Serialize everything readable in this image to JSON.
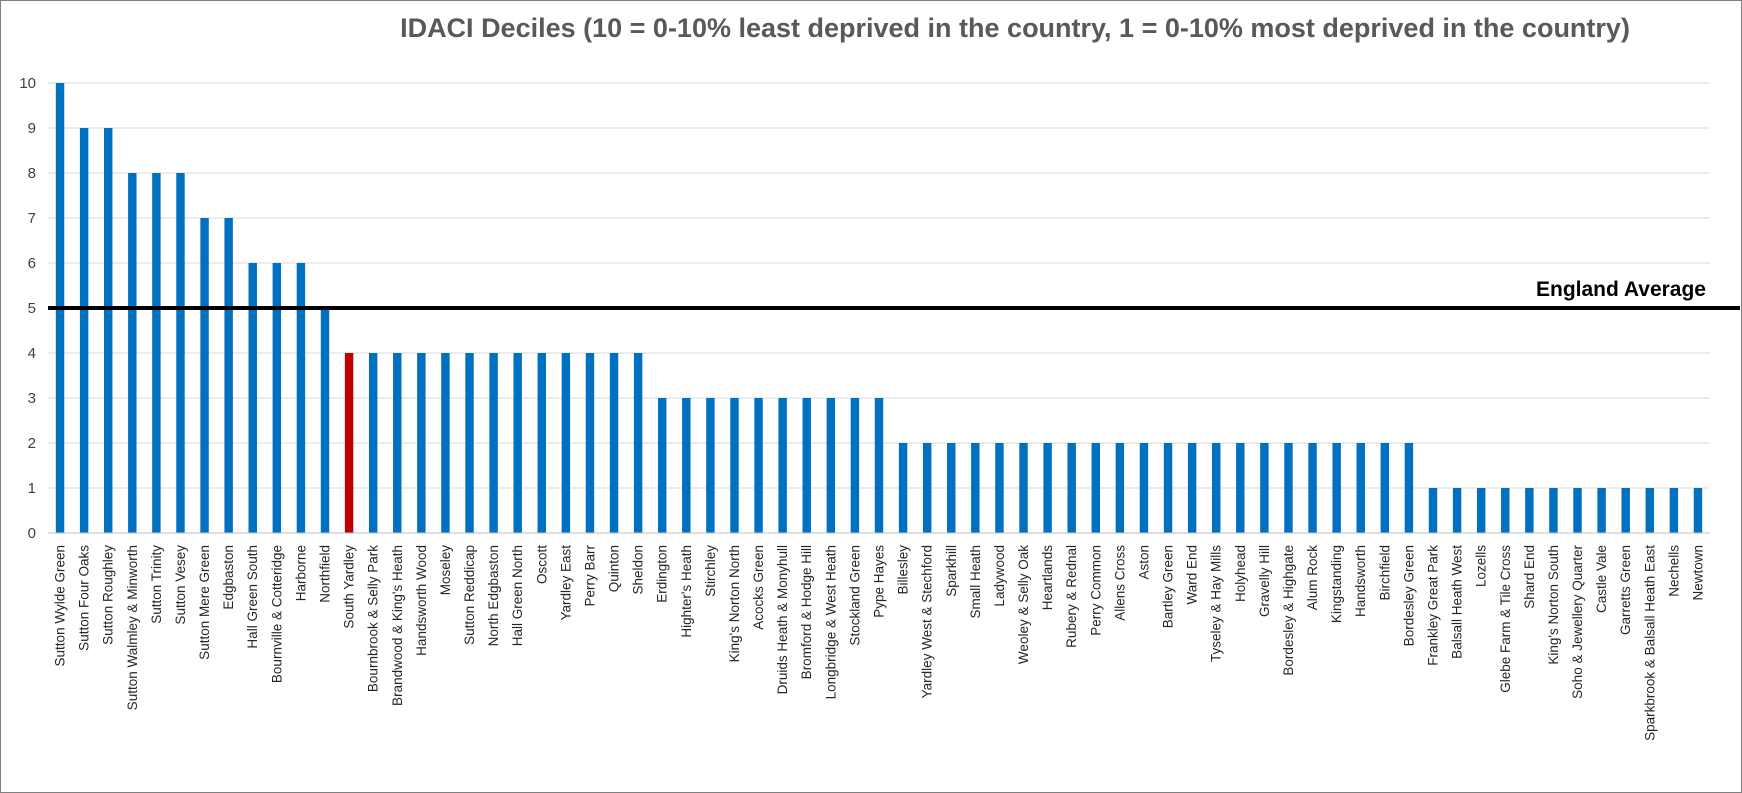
{
  "chart_data": {
    "type": "bar",
    "title": "IDACI Deciles (10 = 0-10% least deprived in the country, 1 = 0-10% most deprived in the country)",
    "xlabel": "",
    "ylabel": "",
    "ylim": [
      0,
      10
    ],
    "yticks": [
      "0",
      "1",
      "2",
      "3",
      "4",
      "5",
      "6",
      "7",
      "8",
      "9",
      "10"
    ],
    "grid": true,
    "bar_color": "#0070C0",
    "highlight_color": "#C00000",
    "highlight_category": "South Yardley",
    "reference_line": {
      "label": "England Average",
      "value": 5,
      "color": "#000000"
    },
    "categories": [
      "Sutton Wylde Green",
      "Sutton Four Oaks",
      "Sutton Roughley",
      "Sutton Walmley & Minworth",
      "Sutton Trinity",
      "Sutton Vesey",
      "Sutton Mere Green",
      "Edgbaston",
      "Hall Green South",
      "Bournville & Cotteridge",
      "Harborne",
      "Northfield",
      "South Yardley",
      "Bournbrook & Selly Park",
      "Brandwood & King's Heath",
      "Handsworth Wood",
      "Moseley",
      "Sutton Reddicap",
      "North Edgbaston",
      "Hall Green North",
      "Oscott",
      "Yardley East",
      "Perry Barr",
      "Quinton",
      "Sheldon",
      "Erdington",
      "Highter's Heath",
      "Stirchley",
      "King's Norton North",
      "Acocks Green",
      "Druids Heath & Monyhull",
      "Bromford & Hodge Hill",
      "Longbridge & West Heath",
      "Stockland Green",
      "Pype Hayes",
      "Billesley",
      "Yardley West & Stechford",
      "Sparkhill",
      "Small Heath",
      "Ladywood",
      "Weoley & Selly Oak",
      "Heartlands",
      "Rubery & Rednal",
      "Perry Common",
      "Allens Cross",
      "Aston",
      "Bartley Green",
      "Ward End",
      "Tyseley & Hay Mills",
      "Holyhead",
      "Gravelly Hill",
      "Bordesley & Highgate",
      "Alum Rock",
      "Kingstanding",
      "Handsworth",
      "Birchfield",
      "Bordesley Green",
      "Frankley Great Park",
      "Balsall Heath West",
      "Lozells",
      "Glebe Farm & Tile Cross",
      "Shard End",
      "King's Norton South",
      "Soho & Jewellery Quarter",
      "Castle Vale",
      "Garretts Green",
      "Sparkbrook & Balsall Heath East",
      "Nechells",
      "Newtown"
    ],
    "values": [
      10,
      9,
      9,
      8,
      8,
      8,
      7,
      7,
      6,
      6,
      6,
      5,
      4,
      4,
      4,
      4,
      4,
      4,
      4,
      4,
      4,
      4,
      4,
      4,
      4,
      3,
      3,
      3,
      3,
      3,
      3,
      3,
      3,
      3,
      3,
      2,
      2,
      2,
      2,
      2,
      2,
      2,
      2,
      2,
      2,
      2,
      2,
      2,
      2,
      2,
      2,
      2,
      2,
      2,
      2,
      2,
      2,
      1,
      1,
      1,
      1,
      1,
      1,
      1,
      1,
      1,
      1,
      1,
      1
    ]
  }
}
